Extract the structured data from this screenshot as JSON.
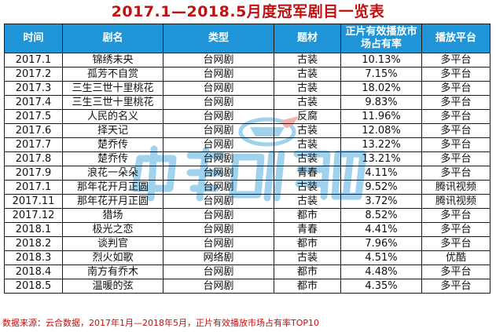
{
  "title": "2017.1—2018.5月度冠军剧目一览表",
  "colors": {
    "title": "#c0100f",
    "header_bg": "#1f95d8",
    "header_text": "#ffffff",
    "source_text": "#c0100f",
    "watermark": "#1f95d8"
  },
  "table": {
    "headers": {
      "time": "时间",
      "name": "剧名",
      "type": "类型",
      "genre": "题材",
      "share_line1": "正片有效播放市",
      "share_line2": "场占有率",
      "platform": "播放平台"
    },
    "rows": [
      {
        "time": "2017.1",
        "name": "锦绣未央",
        "type": "台网剧",
        "genre": "古装",
        "share": "10.13%",
        "platform": "多平台"
      },
      {
        "time": "2017.2",
        "name": "孤芳不自赏",
        "type": "台网剧",
        "genre": "古装",
        "share": "7.15%",
        "platform": "多平台"
      },
      {
        "time": "2017.3",
        "name": "三生三世十里桃花",
        "type": "台网剧",
        "genre": "古装",
        "share": "18.02%",
        "platform": "多平台"
      },
      {
        "time": "2017.4",
        "name": "三生三世十里桃花",
        "type": "台网剧",
        "genre": "古装",
        "share": "9.83%",
        "platform": "多平台"
      },
      {
        "time": "2017.5",
        "name": "人民的名义",
        "type": "台网剧",
        "genre": "反腐",
        "share": "11.96%",
        "platform": "多平台"
      },
      {
        "time": "2017.6",
        "name": "择天记",
        "type": "台网剧",
        "genre": "古装",
        "share": "12.08%",
        "platform": "多平台"
      },
      {
        "time": "2017.7",
        "name": "楚乔传",
        "type": "台网剧",
        "genre": "古装",
        "share": "13.22%",
        "platform": "多平台"
      },
      {
        "time": "2017.8",
        "name": "楚乔传",
        "type": "台网剧",
        "genre": "古装",
        "share": "13.21%",
        "platform": "多平台"
      },
      {
        "time": "2017.9",
        "name": "浪花一朵朵",
        "type": "台网剧",
        "genre": "青春",
        "share": "4.11%",
        "platform": "多平台"
      },
      {
        "time": "2017.1",
        "name": "那年花开月正圆",
        "type": "台网剧",
        "genre": "古装",
        "share": "9.52%",
        "platform": "腾讯视频"
      },
      {
        "time": "2017.11",
        "name": "那年花开月正圆",
        "type": "台网剧",
        "genre": "古装",
        "share": "3.72%",
        "platform": "腾讯视频"
      },
      {
        "time": "2017.12",
        "name": "猎场",
        "type": "台网剧",
        "genre": "都市",
        "share": "8.52%",
        "platform": "多平台"
      },
      {
        "time": "2018.1",
        "name": "极光之恋",
        "type": "台网剧",
        "genre": "青春",
        "share": "4.41%",
        "platform": "多平台"
      },
      {
        "time": "2018.2",
        "name": "谈判官",
        "type": "台网剧",
        "genre": "都市",
        "share": "7.96%",
        "platform": "多平台"
      },
      {
        "time": "2018.3",
        "name": "烈火如歌",
        "type": "网络剧",
        "genre": "古装",
        "share": "4.51%",
        "platform": "优酷"
      },
      {
        "time": "2018.4",
        "name": "南方有乔木",
        "type": "台网剧",
        "genre": "都市",
        "share": "4.48%",
        "platform": "多平台"
      },
      {
        "time": "2018.5",
        "name": "温暖的弦",
        "type": "台网剧",
        "genre": "都市",
        "share": "4.35%",
        "platform": "多平台"
      }
    ]
  },
  "source_note": "数据来源：云合数据，2017年1月—2018年5月，正片有效播放市场占有率TOP10"
}
